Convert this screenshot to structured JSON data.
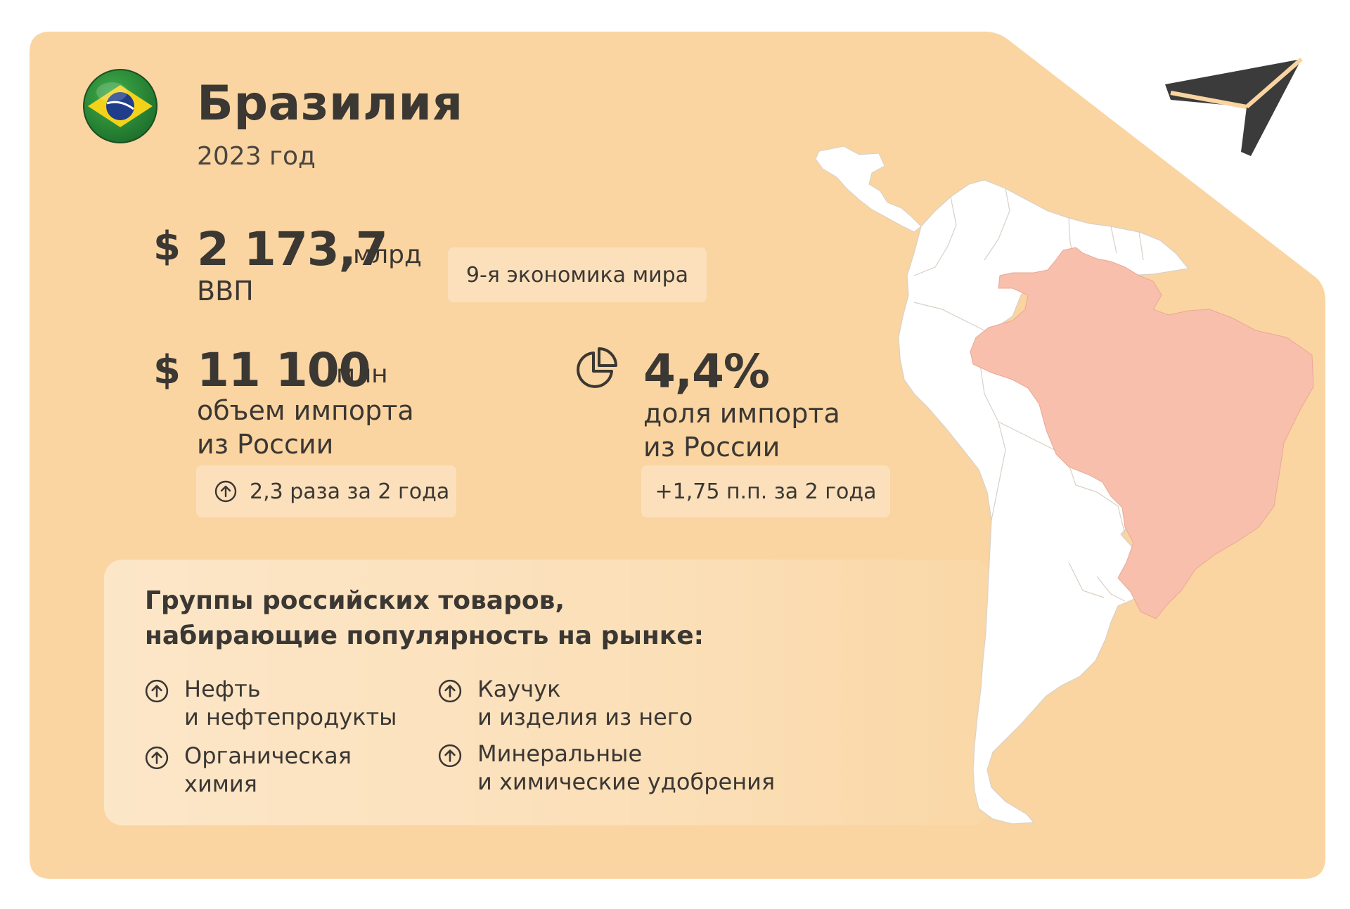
{
  "header": {
    "country": "Бразилия",
    "year": "2023 год",
    "flag_icon": "brazil-flag-icon",
    "logo_icon": "paper-plane-logo-icon"
  },
  "gdp": {
    "currency": "$",
    "value": "2 173,7",
    "unit": "млрд",
    "label": "ВВП",
    "rank_badge": "9-я экономика мира"
  },
  "imports": {
    "currency": "$",
    "value": "11 100",
    "unit": "млн",
    "label_line1": "объем импорта",
    "label_line2": "из России",
    "change_badge": "2,3 раза за 2 года",
    "change_icon": "arrow-up-circle-icon"
  },
  "share": {
    "icon": "pie-chart-icon",
    "value": "4,4%",
    "label_line1": "доля импорта",
    "label_line2": "из России",
    "change_badge": "+1,75 п.п. за 2 года"
  },
  "goods": {
    "title_line1": "Группы российских товаров,",
    "title_line2": "набирающие популярность на рынке:",
    "items": [
      {
        "line1": "Нефть",
        "line2": "и нефтепродукты"
      },
      {
        "line1": "Каучук",
        "line2": "и изделия из него"
      },
      {
        "line1": "Органическая",
        "line2": "химия"
      },
      {
        "line1": "Минеральные",
        "line2": "и химические удобрения"
      }
    ]
  },
  "colors": {
    "card_background": "#fad5a1",
    "highlight_country": "#f8bfad",
    "map_land": "#ffffff",
    "text": "#3b3733"
  }
}
